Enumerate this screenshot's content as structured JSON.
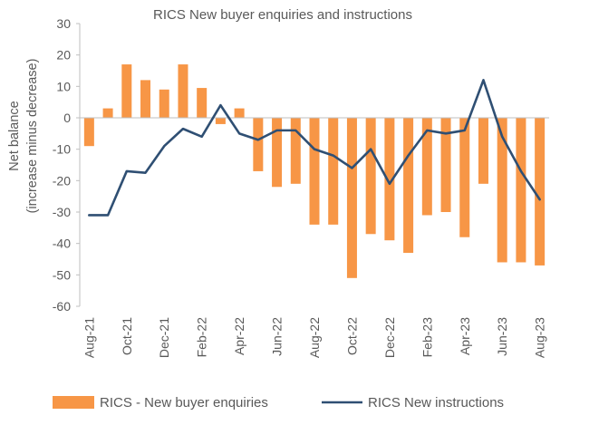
{
  "chart_data": {
    "type": "bar+line",
    "title": "RICS New buyer enquiries and instructions",
    "ylabel": [
      "Net balance",
      "(increase minus decrease)"
    ],
    "ylim": [
      -60,
      30
    ],
    "yticks": [
      30,
      20,
      10,
      0,
      -10,
      -20,
      -30,
      -40,
      -50,
      -60
    ],
    "grid": false,
    "legend_position": "bottom",
    "categories": [
      "Aug-21",
      "Sep-21",
      "Oct-21",
      "Nov-21",
      "Dec-21",
      "Jan-22",
      "Feb-22",
      "Mar-22",
      "Apr-22",
      "May-22",
      "Jun-22",
      "Jul-22",
      "Aug-22",
      "Sep-22",
      "Oct-22",
      "Nov-22",
      "Dec-22",
      "Jan-23",
      "Feb-23",
      "Mar-23",
      "Apr-23",
      "May-23",
      "Jun-23",
      "Jul-23",
      "Aug-23"
    ],
    "tick_labels": [
      "Aug-21",
      "Oct-21",
      "Dec-21",
      "Feb-22",
      "Apr-22",
      "Jun-22",
      "Aug-22",
      "Oct-22",
      "Dec-22",
      "Feb-23",
      "Apr-23",
      "Jun-23",
      "Aug-23"
    ],
    "series": [
      {
        "name": "RICS  - New buyer enquiries",
        "type": "bar",
        "color": "#F79646",
        "values": [
          -9,
          3,
          17,
          12,
          9,
          17,
          9.5,
          -2,
          3,
          -17,
          -22,
          -21,
          -34,
          -34,
          -51,
          -37,
          -39,
          -43,
          -31,
          -30,
          -38,
          -21,
          -46,
          -46,
          -47
        ]
      },
      {
        "name": "RICS New instructions",
        "type": "line",
        "color": "#2F4F73",
        "values": [
          -31,
          -31,
          -17,
          -17.5,
          -9,
          -3.5,
          -6,
          4,
          -5,
          -7,
          -4,
          -4,
          -10,
          -12,
          -16,
          -10,
          -21,
          -12,
          -4,
          -5,
          -4,
          12,
          -6,
          -17,
          -26
        ]
      }
    ]
  }
}
